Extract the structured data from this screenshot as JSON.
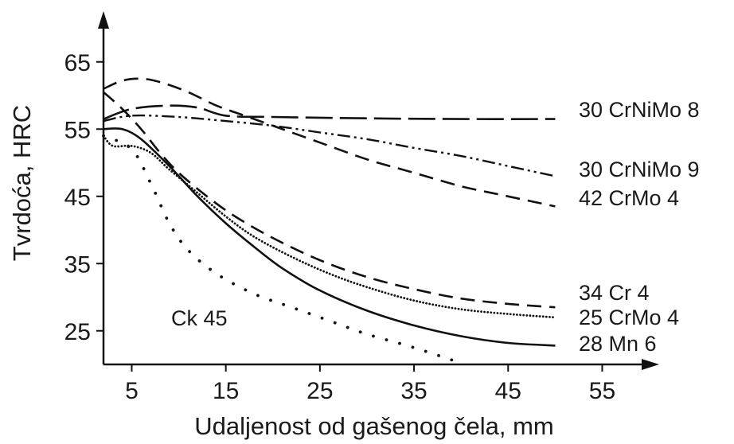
{
  "chart_data": {
    "type": "line",
    "xlabel": "Udaljenost od gašenog čela, mm",
    "ylabel": "Tvrdoća, HRC",
    "xlim": [
      2,
      57
    ],
    "ylim": [
      20,
      70
    ],
    "xticks": [
      5,
      15,
      25,
      35,
      45,
      55
    ],
    "yticks": [
      25,
      35,
      45,
      55,
      65
    ],
    "grid": false,
    "legend": "labels at right end of curves",
    "series": [
      {
        "name": "30 CrNiMo 8",
        "style": "long-dash",
        "points": [
          [
            2,
            56.5
          ],
          [
            5,
            58
          ],
          [
            9,
            58.5
          ],
          [
            12,
            58.2
          ],
          [
            15,
            57
          ],
          [
            20,
            56.8
          ],
          [
            30,
            56.6
          ],
          [
            40,
            56.5
          ],
          [
            50,
            56.5
          ]
        ]
      },
      {
        "name": "30 CrNiMo 9",
        "style": "dash-dot-dot",
        "points": [
          [
            2,
            56.2
          ],
          [
            5,
            57
          ],
          [
            10,
            56.8
          ],
          [
            15,
            56.2
          ],
          [
            20,
            55.5
          ],
          [
            25,
            54.5
          ],
          [
            30,
            53.5
          ],
          [
            35,
            52.2
          ],
          [
            40,
            51
          ],
          [
            45,
            49.5
          ],
          [
            50,
            48
          ]
        ]
      },
      {
        "name": "42 CrMo 4",
        "style": "dash",
        "points": [
          [
            2,
            61
          ],
          [
            4,
            62.2
          ],
          [
            6,
            62.5
          ],
          [
            8,
            62
          ],
          [
            11,
            60.5
          ],
          [
            14,
            58.5
          ],
          [
            17,
            57
          ],
          [
            20,
            55.5
          ],
          [
            25,
            53
          ],
          [
            30,
            50.5
          ],
          [
            35,
            48.5
          ],
          [
            40,
            46.5
          ],
          [
            45,
            45
          ],
          [
            50,
            43.5
          ]
        ]
      },
      {
        "name": "34 Cr 4",
        "style": "dash",
        "points": [
          [
            2,
            60.5
          ],
          [
            4,
            58
          ],
          [
            6,
            55
          ],
          [
            8,
            51.5
          ],
          [
            10,
            48.5
          ],
          [
            13,
            45
          ],
          [
            16,
            42
          ],
          [
            20,
            38.8
          ],
          [
            25,
            35.5
          ],
          [
            30,
            33
          ],
          [
            35,
            31.2
          ],
          [
            40,
            29.8
          ],
          [
            45,
            29
          ],
          [
            50,
            28.5
          ]
        ]
      },
      {
        "name": "25 CrMo 4",
        "style": "dotted",
        "points": [
          [
            2,
            54
          ],
          [
            3,
            52.5
          ],
          [
            5,
            52.5
          ],
          [
            7,
            51.5
          ],
          [
            9,
            49
          ],
          [
            12,
            45.5
          ],
          [
            15,
            42
          ],
          [
            18,
            39
          ],
          [
            22,
            36
          ],
          [
            26,
            33.5
          ],
          [
            30,
            31.5
          ],
          [
            35,
            29.5
          ],
          [
            40,
            28.2
          ],
          [
            45,
            27.5
          ],
          [
            50,
            27
          ]
        ]
      },
      {
        "name": "28 Mn 6",
        "style": "solid",
        "points": [
          [
            2,
            55
          ],
          [
            4,
            55
          ],
          [
            6,
            53.5
          ],
          [
            9,
            49.5
          ],
          [
            12,
            45
          ],
          [
            15,
            41
          ],
          [
            18,
            37.5
          ],
          [
            21,
            34.3
          ],
          [
            25,
            31
          ],
          [
            30,
            28
          ],
          [
            35,
            25.8
          ],
          [
            40,
            24.2
          ],
          [
            45,
            23.2
          ],
          [
            50,
            22.8
          ]
        ]
      },
      {
        "name": "Ck 45",
        "style": "sparse-dot",
        "points": [
          [
            2,
            54
          ],
          [
            5,
            52
          ],
          [
            7,
            47
          ],
          [
            9,
            41
          ],
          [
            11,
            37
          ],
          [
            14,
            33.5
          ],
          [
            18,
            30.5
          ],
          [
            22,
            28.5
          ],
          [
            26,
            26.5
          ],
          [
            30,
            24.5
          ],
          [
            35,
            22.5
          ],
          [
            40,
            20.2
          ]
        ]
      }
    ]
  }
}
